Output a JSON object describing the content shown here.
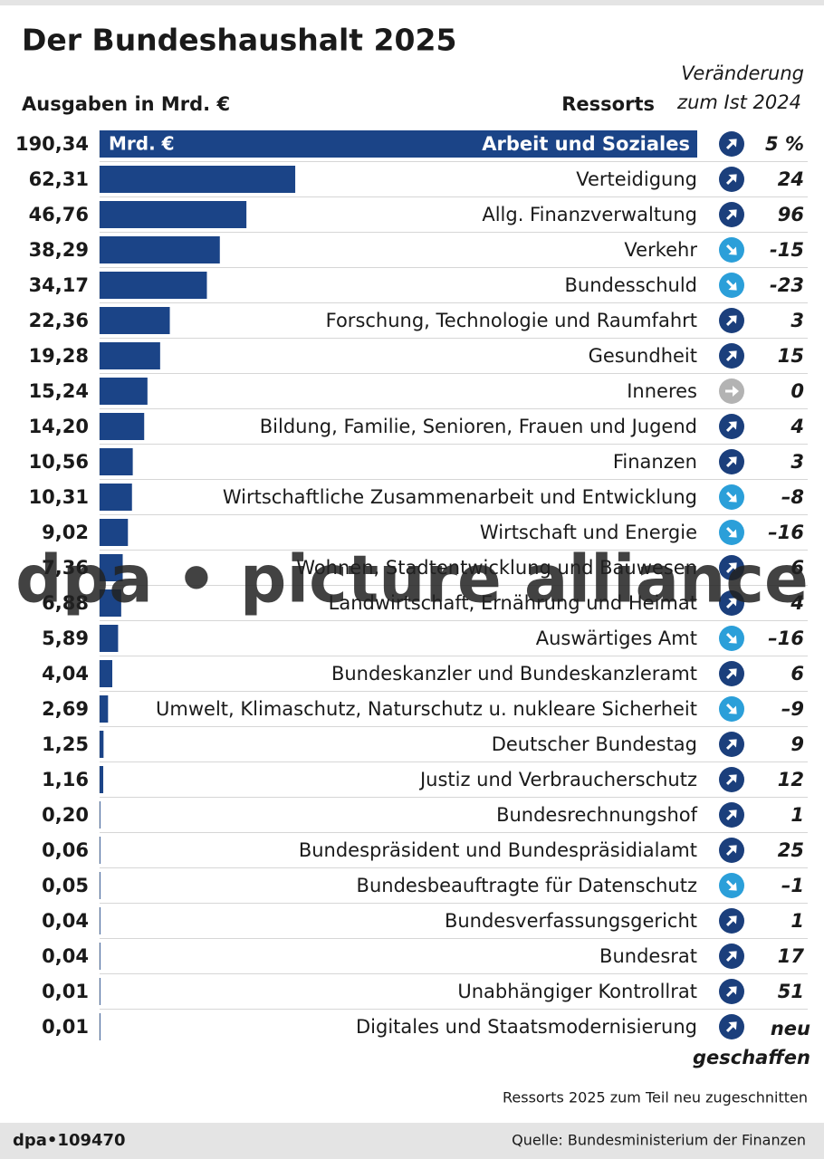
{
  "chart_data": {
    "type": "bar",
    "title": "Der Bundeshaushalt 2025",
    "value_header": "Ausgaben in Mrd. €",
    "category_header": "Ressorts",
    "change_header": [
      "Veränderung",
      "zum Ist 2024"
    ],
    "unit_label": "Mrd. €",
    "bar_color": "#1b4487",
    "up_color": "#1b3f7c",
    "down_color": "#2b9fd9",
    "flat_color": "#b3b3b3",
    "categories": [
      "Arbeit und Soziales",
      "Verteidigung",
      "Allg. Finanzverwaltung",
      "Verkehr",
      "Bundesschuld",
      "Forschung, Technologie und Raumfahrt",
      "Gesundheit",
      "Inneres",
      "Bildung, Familie, Senioren, Frauen und Jugend",
      "Finanzen",
      "Wirtschaftliche Zusammenarbeit und Entwicklung",
      "Wirtschaft und Energie",
      "Wohnen, Stadtentwicklung und Bauwesen",
      "Landwirtschaft, Ernährung und Heimat",
      "Auswärtiges Amt",
      "Bundeskanzler und Bundeskanzleramt",
      "Umwelt, Klimaschutz, Naturschutz u. nukleare Sicherheit",
      "Deutscher Bundestag",
      "Justiz und Verbraucherschutz",
      "Bundesrechnungshof",
      "Bundespräsident und Bundespräsidialamt",
      "Bundesbeauftragte für Datenschutz",
      "Bundesverfassungsgericht",
      "Bundesrat",
      "Unabhängiger Kontrollrat",
      "Digitales und Staatsmodernisierung"
    ],
    "values": [
      190.34,
      62.31,
      46.76,
      38.29,
      34.17,
      22.36,
      19.28,
      15.24,
      14.2,
      10.56,
      10.31,
      9.02,
      7.36,
      6.88,
      5.89,
      4.04,
      2.69,
      1.25,
      1.16,
      0.2,
      0.06,
      0.05,
      0.04,
      0.04,
      0.01,
      0.01
    ],
    "value_labels": [
      "190,34",
      "62,31",
      "46,76",
      "38,29",
      "34,17",
      "22,36",
      "19,28",
      "15,24",
      "14,20",
      "10,56",
      "10,31",
      "9,02",
      "7,36",
      "6,88",
      "5,89",
      "4,04",
      "2,69",
      "1,25",
      "1,16",
      "0,20",
      "0,06",
      "0,05",
      "0,04",
      "0,04",
      "0,01",
      "0,01"
    ],
    "change": {
      "values": [
        5,
        24,
        96,
        -15,
        -23,
        3,
        15,
        0,
        4,
        3,
        -8,
        -16,
        6,
        4,
        -16,
        6,
        -9,
        9,
        12,
        1,
        25,
        -1,
        1,
        17,
        51,
        null
      ],
      "value_labels": [
        "5 %",
        "24",
        "96",
        "-15",
        "-23",
        "3",
        "15",
        "0",
        "4",
        "3",
        "–8",
        "–16",
        "6",
        "4",
        "–16",
        "6",
        "–9",
        "9",
        "12",
        "1",
        "25",
        "–1",
        "1",
        "17",
        "51",
        [
          "neu",
          "geschaffen"
        ]
      ]
    },
    "watermark": "dpa • picture alliance",
    "note": "Ressorts 2025 zum Teil neu zugeschnitten",
    "graphic_id": "dpa•109470",
    "source": "Quelle: Bundesministerium der Finanzen"
  }
}
